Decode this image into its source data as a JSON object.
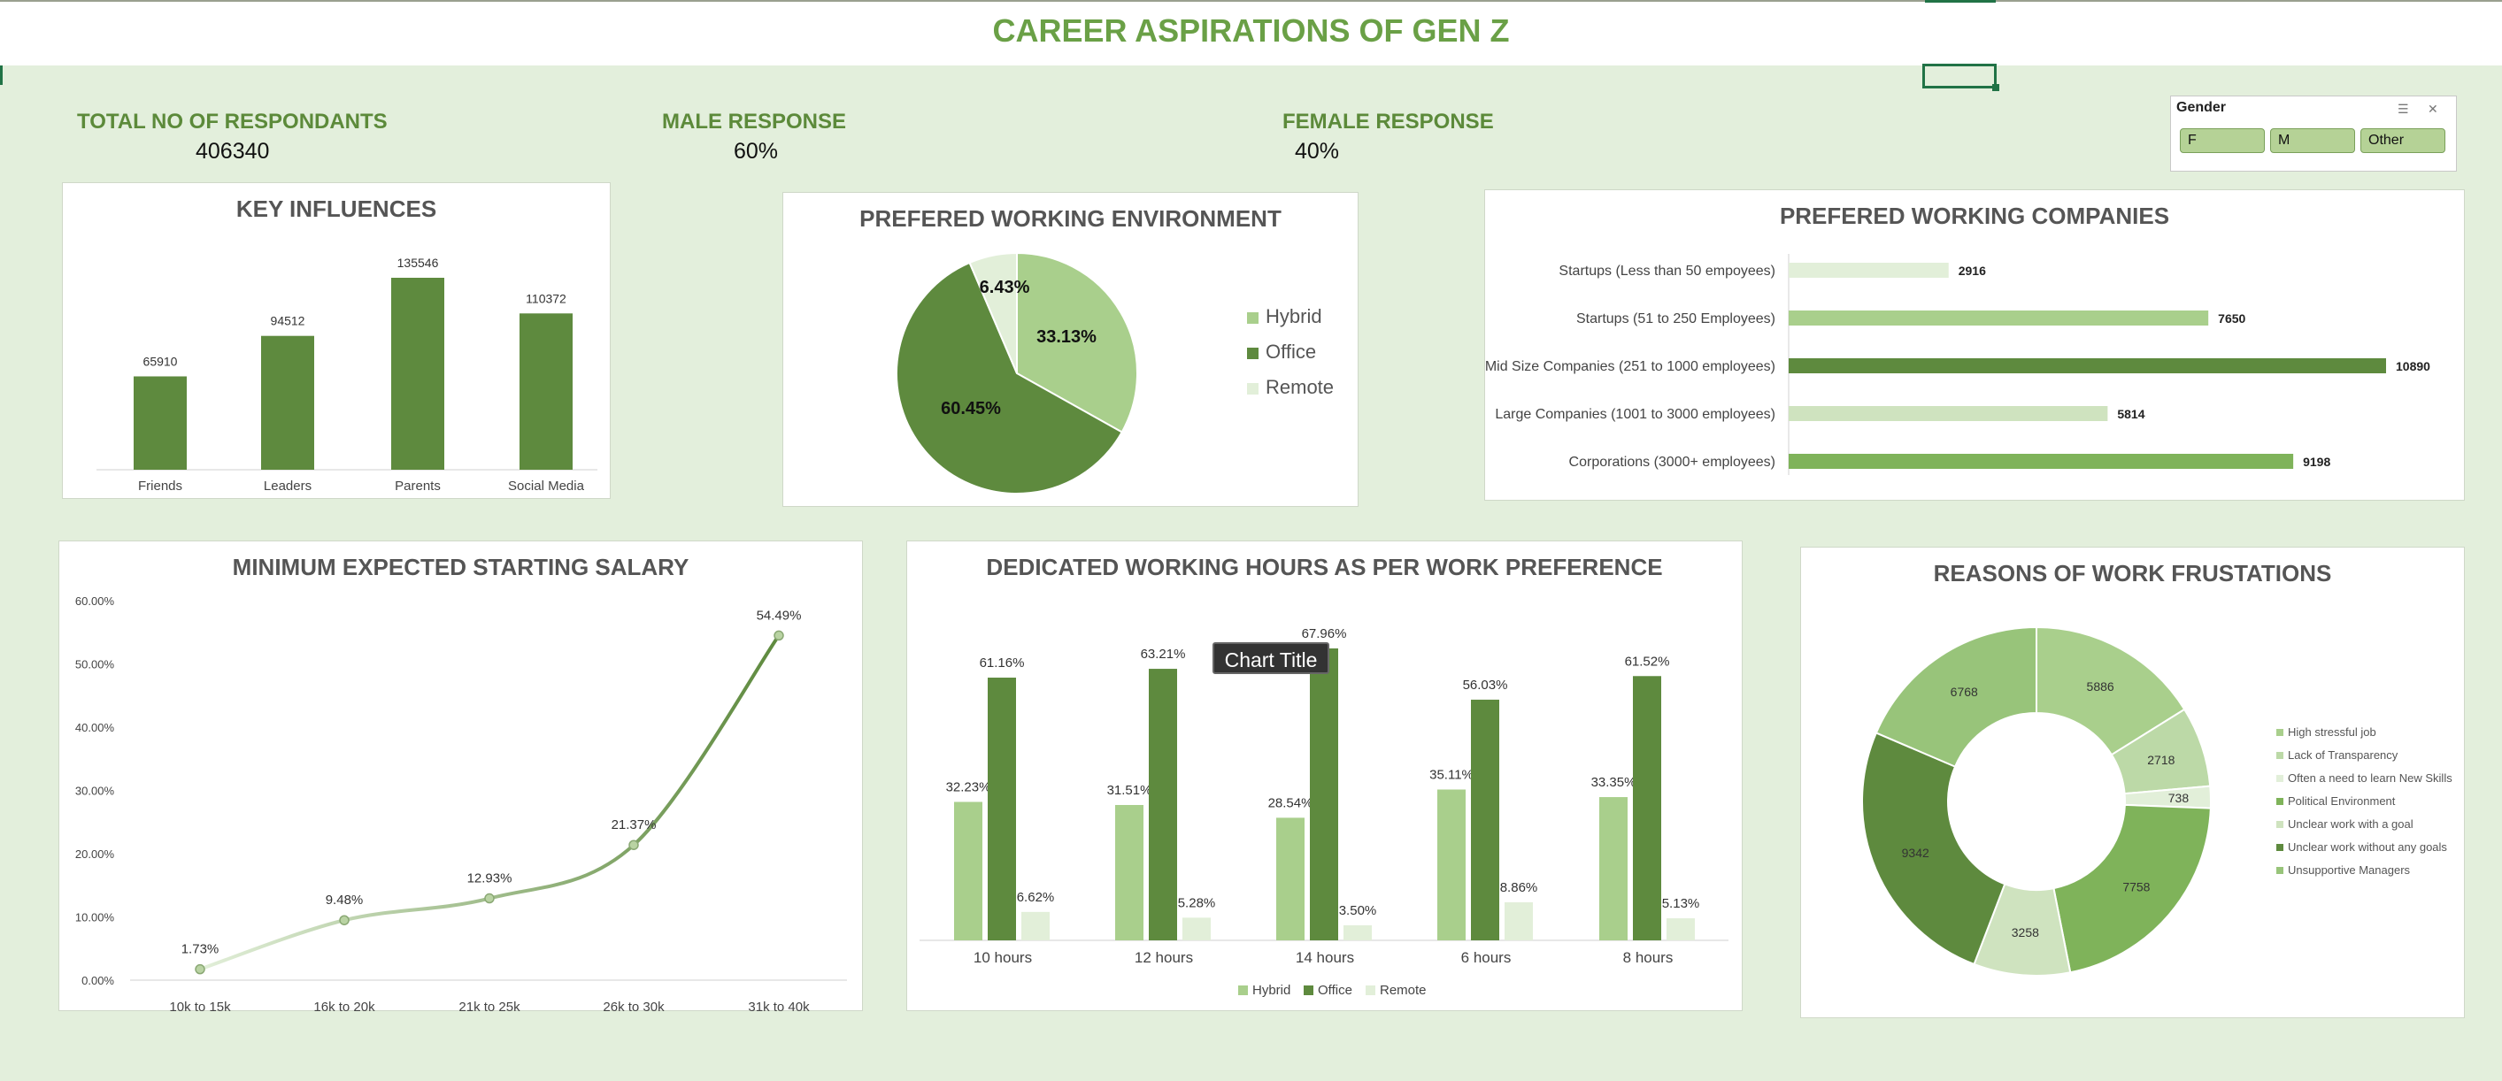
{
  "header": {
    "title": "CAREER ASPIRATIONS OF GEN Z"
  },
  "kpis": {
    "total_label": "TOTAL NO OF RESPONDANTS",
    "total_value": "406340",
    "male_label": "MALE RESPONSE",
    "male_value": "60%",
    "female_label": "FEMALE RESPONSE",
    "female_value": "40%"
  },
  "slicer": {
    "title": "Gender",
    "options": [
      "F",
      "M",
      "Other"
    ],
    "icons": [
      "multi-select-icon",
      "clear-filter-icon"
    ]
  },
  "tooltip": {
    "text": "Chart Title"
  },
  "colors": {
    "light": "#a9cf8c",
    "dark": "#5e8a3e",
    "pale": "#e2efd9",
    "mid": "#7fb35a",
    "bg": "#e3efdc"
  },
  "chart_data": [
    {
      "id": "key_influences",
      "type": "bar",
      "title": "KEY INFLUENCES",
      "categories": [
        "Friends",
        "Leaders",
        "Parents",
        "Social Media"
      ],
      "values": [
        65910,
        94512,
        135546,
        110372
      ],
      "labels": [
        "65910",
        "94512",
        "135546",
        "110372"
      ],
      "ylim": [
        0,
        150000
      ],
      "grid": false
    },
    {
      "id": "working_env",
      "type": "pie",
      "title": "PREFERED WORKING ENVIRONMENT",
      "categories": [
        "Hybrid",
        "Office",
        "Remote"
      ],
      "values": [
        33.13,
        60.45,
        6.43
      ],
      "labels": [
        "33.13%",
        "60.45%",
        "6.43%"
      ],
      "legend": "right"
    },
    {
      "id": "working_companies",
      "type": "bar",
      "orientation": "horizontal",
      "title": "PREFERED WORKING COMPANIES",
      "categories": [
        "Startups (Less than 50 empoyees)",
        "Startups (51 to 250 Employees)",
        "Mid Size Companies (251 to 1000 employees)",
        "Large Companies (1001 to 3000 employees)",
        "Corporations (3000+ employees)"
      ],
      "values": [
        2916,
        7650,
        10890,
        5814,
        9198
      ],
      "labels": [
        "2916",
        "7650",
        "10890",
        "5814",
        "9198"
      ],
      "xlim": [
        0,
        11000
      ]
    },
    {
      "id": "starting_salary",
      "type": "line",
      "title": "MINIMUM EXPECTED STARTING SALARY",
      "categories": [
        "10k to 15k",
        "16k to 20k",
        "21k to 25k",
        "26k to 30k",
        "31k to 40k"
      ],
      "values": [
        1.73,
        9.48,
        12.93,
        21.37,
        54.49
      ],
      "labels": [
        "1.73%",
        "9.48%",
        "12.93%",
        "21.37%",
        "54.49%"
      ],
      "yticks": [
        "0.00%",
        "10.00%",
        "20.00%",
        "30.00%",
        "40.00%",
        "50.00%",
        "60.00%"
      ],
      "ylim": [
        0,
        60
      ],
      "grid": false
    },
    {
      "id": "working_hours",
      "type": "bar",
      "title": "DEDICATED WORKING HOURS AS PER WORK PREFERENCE",
      "categories": [
        "10 hours",
        "12 hours",
        "14 hours",
        "6 hours",
        "8 hours"
      ],
      "series": [
        {
          "name": "Hybrid",
          "values": [
            32.23,
            31.51,
            28.54,
            35.11,
            33.35
          ],
          "labels": [
            "32.23%",
            "31.51%",
            "28.54%",
            "35.11%",
            "33.35%"
          ]
        },
        {
          "name": "Office",
          "values": [
            61.16,
            63.21,
            67.96,
            56.03,
            61.52
          ],
          "labels": [
            "61.16%",
            "63.21%",
            "67.96%",
            "56.03%",
            "61.52%"
          ]
        },
        {
          "name": "Remote",
          "values": [
            6.62,
            5.28,
            3.5,
            8.86,
            5.13
          ],
          "labels": [
            "6.62%",
            "5.28%",
            "3.50%",
            "8.86%",
            "5.13%"
          ]
        }
      ],
      "ylim": [
        0,
        70
      ],
      "legend": "bottom"
    },
    {
      "id": "work_frustrations",
      "type": "pie",
      "subtype": "donut",
      "title": "REASONS OF WORK FRUSTATIONS",
      "categories": [
        "High stressful job",
        "Lack of Transparency",
        "Often a need to learn New Skills",
        "Political Environment",
        "Unclear work with a goal",
        "Unclear work without any goals",
        "Unsupportive Managers"
      ],
      "values": [
        5886,
        2718,
        738,
        7758,
        3258,
        9342,
        6768
      ],
      "labels": [
        "5886",
        "2718",
        "738",
        "7758",
        "3258",
        "9342",
        "6768"
      ],
      "legend": "right"
    }
  ]
}
